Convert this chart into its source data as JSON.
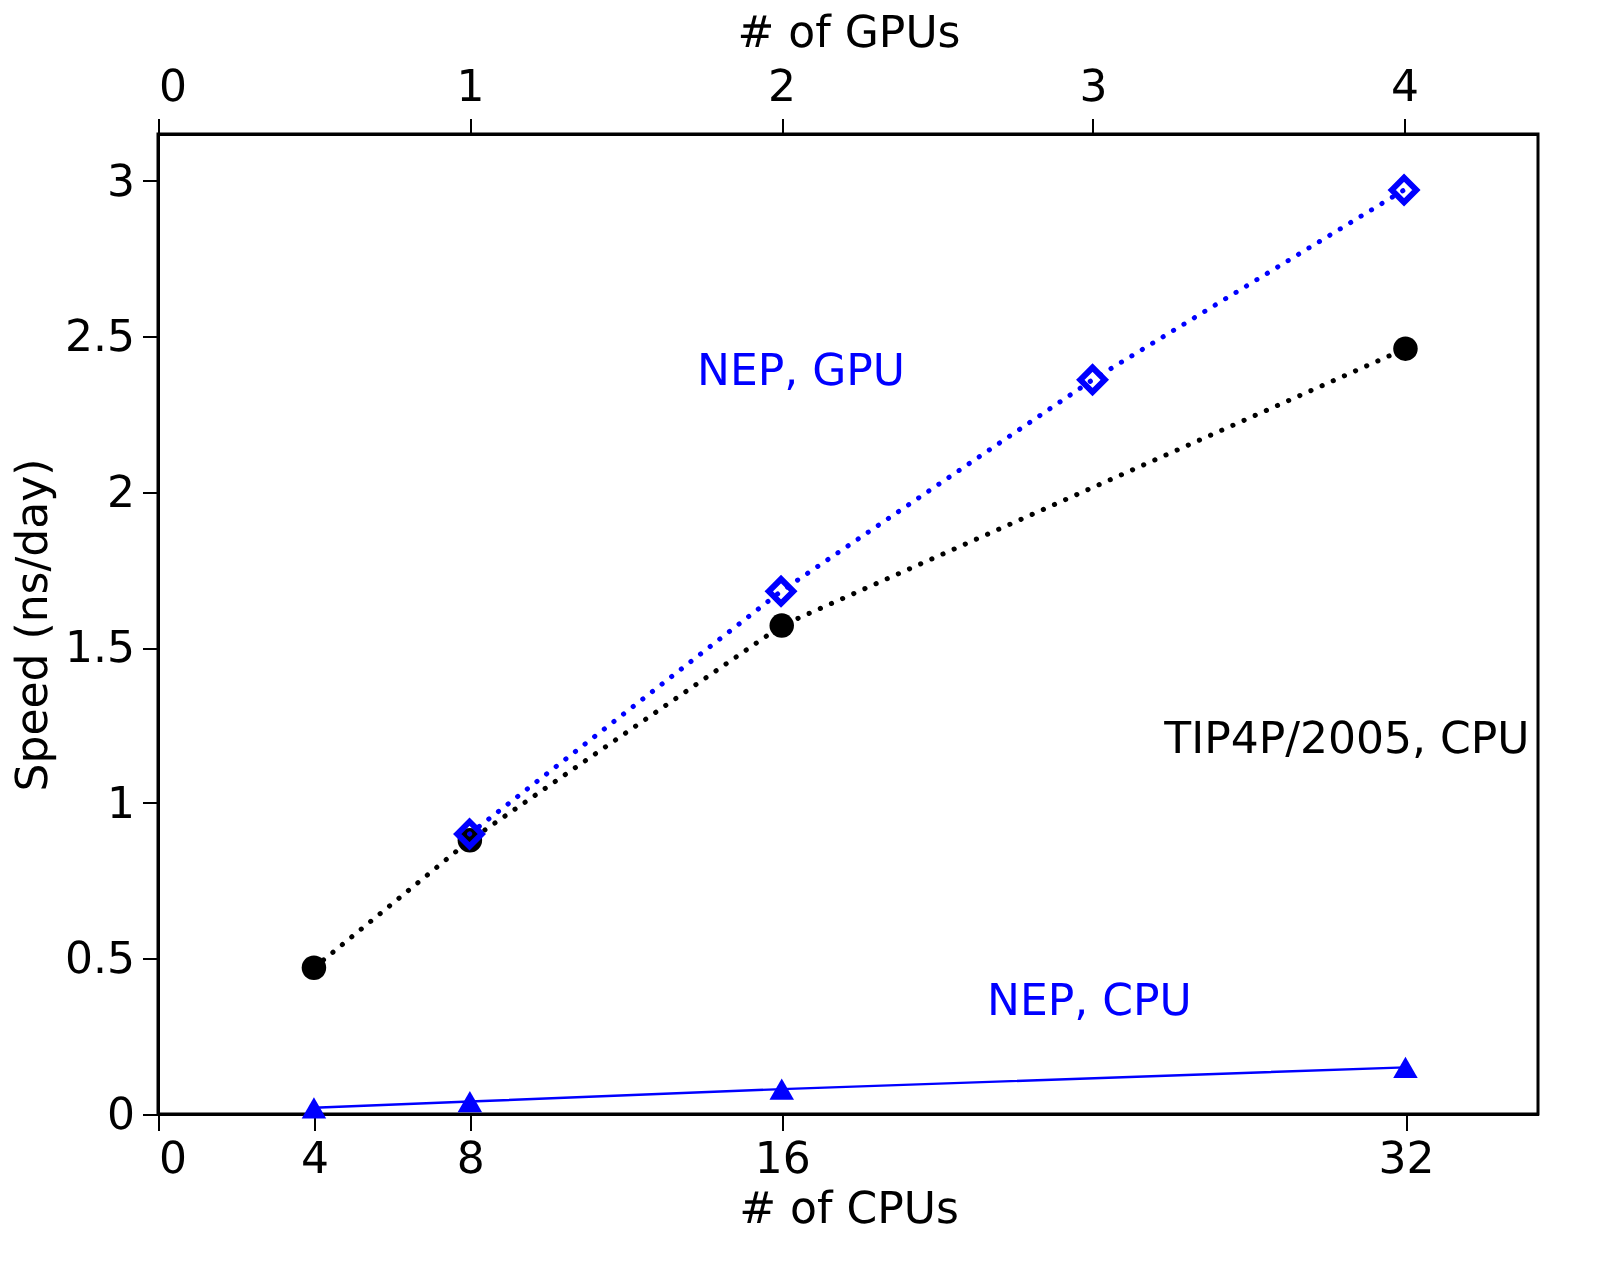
{
  "chart_data": {
    "type": "line",
    "xlabel": "# of CPUs",
    "x2label": "# of GPUs",
    "ylabel": "Speed (ns/day)",
    "xlim": [
      0,
      35.4
    ],
    "xticks": [
      0,
      4,
      8,
      16,
      32
    ],
    "x2lim": [
      0,
      4.43
    ],
    "x2ticks": [
      0,
      1,
      2,
      3,
      4
    ],
    "ylim": [
      0,
      3.15
    ],
    "yticks": [
      0,
      0.5,
      1,
      1.5,
      2,
      2.5,
      3
    ],
    "grid": false,
    "series": [
      {
        "name": "NEP, GPU",
        "color": "#0000ff",
        "axis": "x2",
        "x": [
          1,
          2,
          3,
          4
        ],
        "values": [
          0.9,
          1.68,
          2.36,
          2.97
        ],
        "marker": "diamond",
        "line_style": "dotted"
      },
      {
        "name": "TIP4P/2005, CPU",
        "color": "#000000",
        "x": [
          4,
          8,
          16,
          32
        ],
        "values": [
          0.47,
          0.88,
          1.57,
          2.46
        ],
        "marker": "circle",
        "line_style": "dotted"
      },
      {
        "name": "NEP, CPU",
        "color": "#0000ff",
        "x": [
          4,
          8,
          16,
          32
        ],
        "values": [
          0.02,
          0.04,
          0.08,
          0.15
        ],
        "marker": "triangle",
        "line_style": "solid"
      }
    ]
  }
}
